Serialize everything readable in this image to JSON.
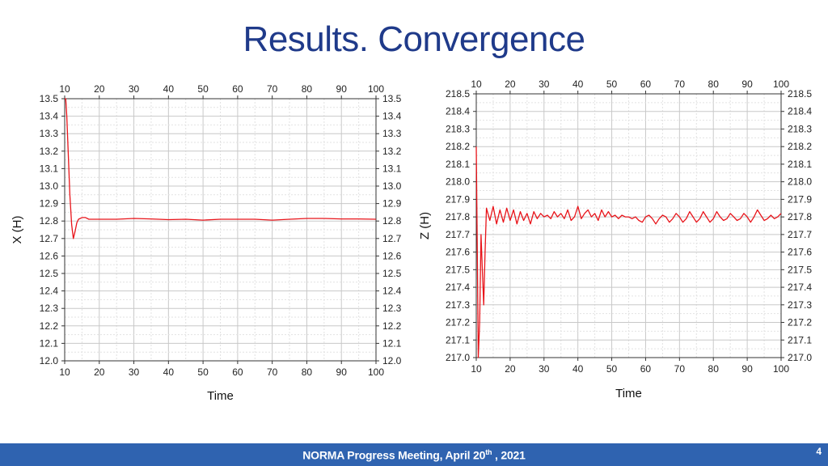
{
  "slide": {
    "title": "Results. Convergence",
    "footer": {
      "text_before": "NORMA Progress Meeting, April 20",
      "superscript": "th",
      "text_after": " , 2021"
    },
    "page_number": "4"
  },
  "colors": {
    "series": "#e8141a",
    "title": "#1f3a8a",
    "footer_bg": "#2f63b0"
  },
  "chart_data": [
    {
      "type": "line",
      "xlabel": "Time",
      "ylabel": "X (H)",
      "xlim": [
        10,
        100
      ],
      "ylim": [
        12.0,
        13.5
      ],
      "xticks": [
        10,
        20,
        30,
        40,
        50,
        60,
        70,
        80,
        90,
        100
      ],
      "yticks": [
        "12.0",
        "12.1",
        "12.2",
        "12.3",
        "12.4",
        "12.5",
        "12.6",
        "12.7",
        "12.8",
        "12.9",
        "13.0",
        "13.1",
        "13.2",
        "13.3",
        "13.4",
        "13.5"
      ],
      "grid": true,
      "series": [
        {
          "x": [
            10,
            10.3,
            10.6,
            11,
            11.5,
            12,
            12.5,
            13,
            13.5,
            14,
            15,
            16,
            17,
            18,
            20,
            25,
            30,
            35,
            40,
            45,
            50,
            55,
            60,
            65,
            70,
            75,
            80,
            85,
            90,
            95,
            100
          ],
          "y": [
            13.5,
            13.5,
            13.4,
            13.2,
            12.95,
            12.78,
            12.7,
            12.74,
            12.79,
            12.81,
            12.82,
            12.82,
            12.81,
            12.81,
            12.81,
            12.81,
            12.815,
            12.812,
            12.808,
            12.81,
            12.805,
            12.81,
            12.81,
            12.81,
            12.805,
            12.81,
            12.815,
            12.815,
            12.812,
            12.812,
            12.81
          ]
        }
      ]
    },
    {
      "type": "line",
      "xlabel": "Time",
      "ylabel": "Z (H)",
      "xlim": [
        10,
        100
      ],
      "ylim": [
        217.0,
        218.5
      ],
      "xticks": [
        10,
        20,
        30,
        40,
        50,
        60,
        70,
        80,
        90,
        100
      ],
      "yticks": [
        "217.0",
        "217.1",
        "217.2",
        "217.3",
        "217.4",
        "217.5",
        "217.6",
        "217.7",
        "217.8",
        "217.9",
        "218.0",
        "218.1",
        "218.2",
        "218.3",
        "218.4",
        "218.5"
      ],
      "grid": true,
      "series": [
        {
          "x": [
            10,
            10.3,
            10.6,
            11,
            11.4,
            11.8,
            12.2,
            12.6,
            13,
            14,
            15,
            16,
            17,
            18,
            19,
            20,
            21,
            22,
            23,
            24,
            25,
            26,
            27,
            28,
            29,
            30,
            31,
            32,
            33,
            34,
            35,
            36,
            37,
            38,
            39,
            40,
            41,
            42,
            43,
            44,
            45,
            46,
            47,
            48,
            49,
            50,
            51,
            52,
            53,
            54,
            55,
            56,
            57,
            58,
            59,
            60,
            61,
            62,
            63,
            64,
            65,
            66,
            67,
            68,
            69,
            70,
            71,
            72,
            73,
            74,
            75,
            76,
            77,
            78,
            79,
            80,
            81,
            82,
            83,
            84,
            85,
            86,
            87,
            88,
            89,
            90,
            91,
            92,
            93,
            94,
            95,
            96,
            97,
            98,
            99,
            100
          ],
          "y": [
            218.2,
            217.6,
            217.0,
            217.2,
            217.7,
            217.5,
            217.3,
            217.6,
            217.85,
            217.78,
            217.86,
            217.76,
            217.84,
            217.77,
            217.85,
            217.78,
            217.84,
            217.76,
            217.83,
            217.78,
            217.82,
            217.76,
            217.83,
            217.79,
            217.82,
            217.8,
            217.81,
            217.79,
            217.83,
            217.8,
            217.82,
            217.79,
            217.84,
            217.78,
            217.8,
            217.86,
            217.79,
            217.82,
            217.84,
            217.8,
            217.82,
            217.78,
            217.84,
            217.8,
            217.83,
            217.8,
            217.81,
            217.79,
            217.81,
            217.8,
            217.8,
            217.79,
            217.8,
            217.78,
            217.77,
            217.8,
            217.81,
            217.79,
            217.76,
            217.79,
            217.81,
            217.8,
            217.77,
            217.79,
            217.82,
            217.8,
            217.77,
            217.79,
            217.83,
            217.8,
            217.77,
            217.79,
            217.83,
            217.8,
            217.77,
            217.79,
            217.83,
            217.8,
            217.78,
            217.79,
            217.82,
            217.8,
            217.78,
            217.79,
            217.82,
            217.8,
            217.77,
            217.8,
            217.84,
            217.81,
            217.78,
            217.79,
            217.81,
            217.79,
            217.8,
            217.82
          ]
        }
      ]
    }
  ]
}
